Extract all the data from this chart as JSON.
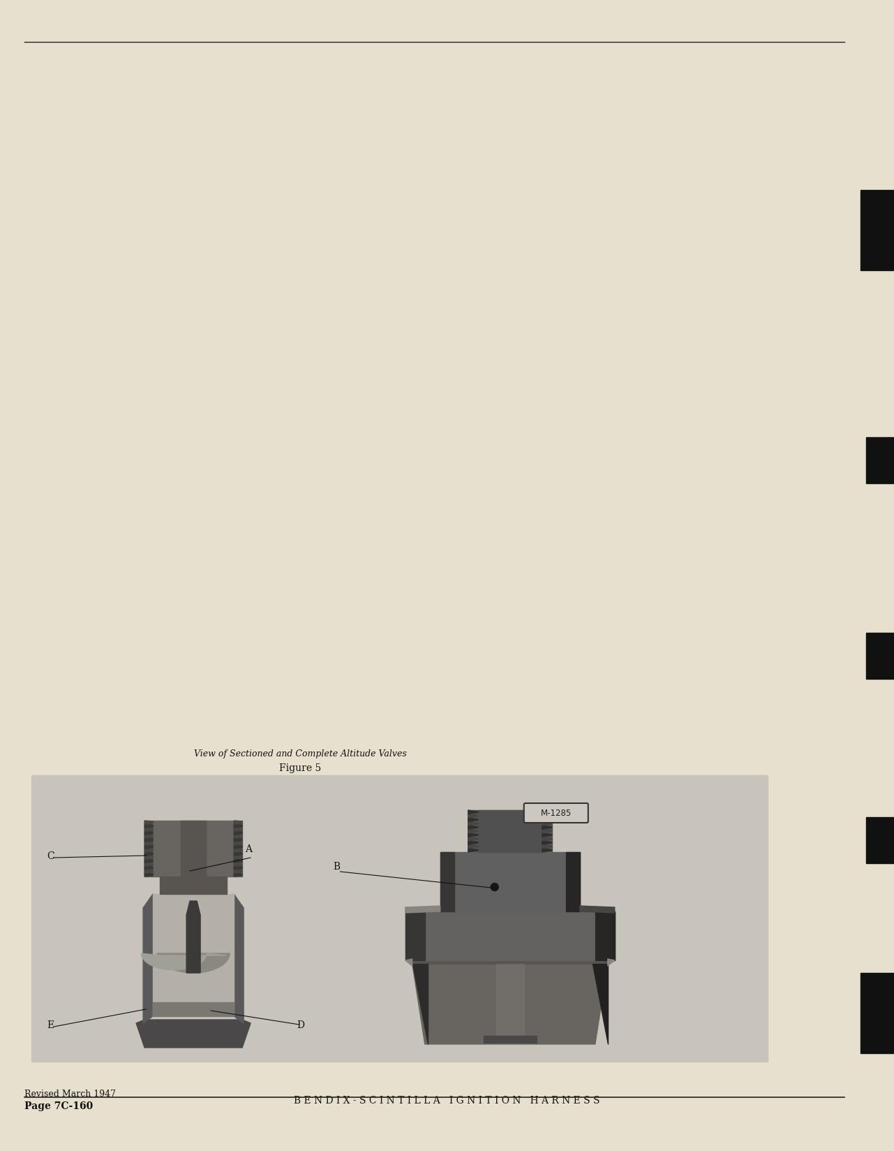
{
  "page_number": "Page 7C-160",
  "revised": "Revised March 1947",
  "header_title": "B E N D I X - S C I N T I L L A   I G N I T I O N   H A R N E S S",
  "figure_caption_line1": "Figure 5",
  "figure_caption_line2": "View of Sectioned and Complete Altitude Valves",
  "bg_color": "#e8e0ce",
  "header_line_color": "#222222",
  "text_color": "#111111",
  "tab_data": [
    [
      0.88,
      0.07,
      48
    ],
    [
      0.73,
      0.04,
      40
    ],
    [
      0.57,
      0.04,
      40
    ],
    [
      0.4,
      0.04,
      40
    ],
    [
      0.2,
      0.07,
      48
    ]
  ]
}
